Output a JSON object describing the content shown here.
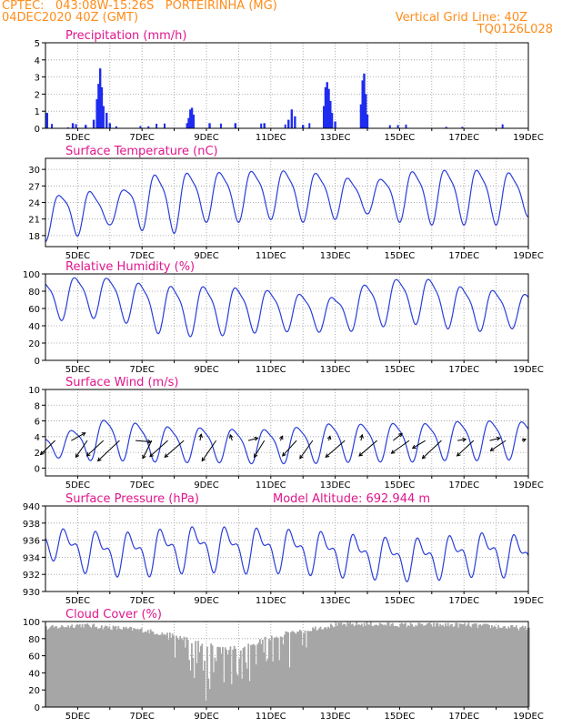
{
  "header": {
    "line1_left": "CPTEC:   043:08W-15:26S   PORTEIRINHA (MG)",
    "line2_left": "04DEC2020 40Z (GMT)",
    "line1_right": "Vertical Grid Line: 40Z",
    "line2_right": "TQ0126L028"
  },
  "colors": {
    "header": "#ff8c1a",
    "title": "#e0168c",
    "series": "#2a3ed8",
    "precip_bar": "#1e2bf0",
    "cloud_bar": "#a6a6a6",
    "grid": "#9a9a9a",
    "arrow": "#000000"
  },
  "x_tick_labels": [
    "5DEC",
    "7DEC",
    "9DEC",
    "11DEC",
    "13DEC",
    "15DEC",
    "17DEC",
    "19DEC"
  ],
  "chart_data": [
    {
      "type": "bar",
      "id": "precip",
      "title": "Precipitation (mm/h)",
      "ylim": [
        0,
        5
      ],
      "yticks": [
        0,
        1,
        2,
        3,
        4,
        5
      ],
      "x_range_days": [
        4,
        19
      ],
      "events": [
        {
          "day": 4.05,
          "value": 0.9
        },
        {
          "day": 4.85,
          "value": 0.3
        },
        {
          "day": 5.25,
          "value": 0.2
        },
        {
          "day": 5.5,
          "value": 0.5
        },
        {
          "day": 5.6,
          "value": 1.7
        },
        {
          "day": 5.65,
          "value": 2.6
        },
        {
          "day": 5.7,
          "value": 3.5
        },
        {
          "day": 5.75,
          "value": 2.4
        },
        {
          "day": 5.8,
          "value": 1.3
        },
        {
          "day": 5.9,
          "value": 0.9
        },
        {
          "day": 6.0,
          "value": 0.3
        },
        {
          "day": 8.4,
          "value": 0.3
        },
        {
          "day": 8.45,
          "value": 0.6
        },
        {
          "day": 8.5,
          "value": 1.1
        },
        {
          "day": 8.55,
          "value": 1.2
        },
        {
          "day": 8.6,
          "value": 0.8
        },
        {
          "day": 9.1,
          "value": 0.3
        },
        {
          "day": 9.9,
          "value": 0.3
        },
        {
          "day": 10.8,
          "value": 0.3
        },
        {
          "day": 11.55,
          "value": 0.5
        },
        {
          "day": 11.65,
          "value": 1.1
        },
        {
          "day": 11.75,
          "value": 0.7
        },
        {
          "day": 12.0,
          "value": 0.2
        },
        {
          "day": 12.65,
          "value": 1.3
        },
        {
          "day": 12.7,
          "value": 2.4
        },
        {
          "day": 12.75,
          "value": 2.7
        },
        {
          "day": 12.8,
          "value": 2.3
        },
        {
          "day": 12.85,
          "value": 1.6
        },
        {
          "day": 12.9,
          "value": 0.9
        },
        {
          "day": 13.0,
          "value": 0.4
        },
        {
          "day": 13.8,
          "value": 1.4
        },
        {
          "day": 13.85,
          "value": 2.8
        },
        {
          "day": 13.9,
          "value": 3.2
        },
        {
          "day": 13.95,
          "value": 2.0
        },
        {
          "day": 14.0,
          "value": 0.8
        }
      ]
    },
    {
      "type": "line",
      "id": "temp",
      "title": "Surface Temperature (nC)",
      "ylim": [
        16,
        32
      ],
      "yticks": [
        18,
        21,
        24,
        27,
        30
      ],
      "series": [
        {
          "mean": [
            21,
            23,
            22.5,
            24.5,
            24.5,
            25.5,
            25.5,
            26,
            25.5,
            25.5,
            25,
            25.5,
            25.5,
            25.5,
            25.5,
            25.5
          ],
          "amplitude": [
            4,
            5,
            2.5,
            5.5,
            6,
            5,
            5,
            5,
            5,
            4.5,
            3,
            5,
            5.5,
            5.5,
            5.5,
            4
          ],
          "phase_days": 0.22
        }
      ]
    },
    {
      "type": "line",
      "id": "rh",
      "title": "Relative Humidity (%)",
      "ylim": [
        0,
        100
      ],
      "yticks": [
        0,
        20,
        40,
        60,
        80,
        100
      ],
      "series": [
        {
          "mean": [
            72,
            74,
            76,
            65,
            60,
            60,
            60,
            60,
            57,
            55,
            65,
            72,
            70,
            62,
            60,
            60
          ],
          "amplitude": [
            25,
            28,
            24,
            30,
            32,
            32,
            30,
            26,
            24,
            22,
            30,
            28,
            30,
            28,
            26,
            20
          ],
          "phase_days": 0.72
        }
      ]
    },
    {
      "type": "line",
      "id": "wind",
      "title": "Surface Wind (m/s)",
      "ylim": [
        -1,
        10
      ],
      "yticks": [
        0,
        2,
        4,
        6,
        8,
        10
      ],
      "series": [
        {
          "mean": [
            3,
            3.2,
            4,
            3.5,
            3.2,
            3.2,
            3,
            3,
            3.2,
            3.5,
            3.5,
            3.5,
            3.6,
            3.8,
            3.8,
            3.8
          ],
          "amplitude": [
            1.5,
            2.2,
            3,
            2.6,
            2.5,
            2.4,
            2.4,
            2.4,
            2.6,
            2.8,
            2.6,
            2.8,
            2.6,
            2.8,
            2.8,
            2.6
          ],
          "phase_days": 0.62
        }
      ],
      "vectors": [
        {
          "day": 4.3,
          "u": -2.3,
          "v": -2.2
        },
        {
          "day": 4.8,
          "u": 2.2,
          "v": 1.2
        },
        {
          "day": 5.3,
          "u": -1.8,
          "v": -2.6
        },
        {
          "day": 5.8,
          "u": -2.6,
          "v": -2.4
        },
        {
          "day": 6.3,
          "u": -3.4,
          "v": -3.2
        },
        {
          "day": 6.8,
          "u": 2.4,
          "v": -0.2
        },
        {
          "day": 7.3,
          "u": -1.4,
          "v": -2.8
        },
        {
          "day": 7.8,
          "u": -2.8,
          "v": -2.5
        },
        {
          "day": 8.3,
          "u": -3.0,
          "v": -2.6
        },
        {
          "day": 8.8,
          "u": 0.2,
          "v": 1.0
        },
        {
          "day": 9.3,
          "u": -2.2,
          "v": -3.2
        },
        {
          "day": 9.8,
          "u": -0.3,
          "v": 0.9
        },
        {
          "day": 10.3,
          "u": 1.5,
          "v": 0.4
        },
        {
          "day": 10.8,
          "u": -1.6,
          "v": -2.6
        },
        {
          "day": 11.3,
          "u": 0.3,
          "v": 0.7
        },
        {
          "day": 11.8,
          "u": -2.2,
          "v": -2.4
        },
        {
          "day": 12.3,
          "u": -2.0,
          "v": -2.8
        },
        {
          "day": 12.8,
          "u": 0.2,
          "v": 0.7
        },
        {
          "day": 13.3,
          "u": -3.0,
          "v": -2.6
        },
        {
          "day": 13.8,
          "u": 0.2,
          "v": 0.9
        },
        {
          "day": 14.3,
          "u": -2.8,
          "v": -2.4
        },
        {
          "day": 14.8,
          "u": 1.4,
          "v": 1.1
        },
        {
          "day": 15.3,
          "u": -2.8,
          "v": -2.0
        },
        {
          "day": 15.8,
          "u": -2.0,
          "v": -1.2
        },
        {
          "day": 16.3,
          "u": -3.0,
          "v": -2.8
        },
        {
          "day": 16.8,
          "u": 1.3,
          "v": 0.2
        },
        {
          "day": 17.3,
          "u": -2.6,
          "v": -2.4
        },
        {
          "day": 17.8,
          "u": 1.6,
          "v": 0.4
        },
        {
          "day": 18.3,
          "u": -2.4,
          "v": -1.6
        },
        {
          "day": 18.8,
          "u": 0.6,
          "v": 0.2
        }
      ]
    },
    {
      "type": "line",
      "id": "pressure",
      "title": "Surface Pressure (hPa)",
      "subtitle": "Model Altitude: 692.944 m",
      "ylim": [
        930,
        940
      ],
      "yticks": [
        930,
        932,
        934,
        936,
        938,
        940
      ],
      "series": [
        {
          "mean": [
            935.8,
            935,
            934.5,
            934.6,
            935,
            935.2,
            935,
            935,
            934.8,
            934.5,
            934.2,
            933.9,
            934,
            934.4,
            934.6,
            934
          ],
          "amplitude": [
            1.2,
            2.2,
            2.2,
            2.4,
            2.4,
            2.4,
            2.4,
            2.3,
            2.3,
            2.3,
            2.2,
            2.2,
            2.2,
            2.2,
            2.3,
            2.3
          ],
          "phase_days": 0.42
        }
      ]
    },
    {
      "type": "bar",
      "id": "cloud",
      "title": "Cloud Cover (%)",
      "ylim": [
        0,
        100
      ],
      "yticks": [
        0,
        20,
        40,
        60,
        80,
        100
      ],
      "profile": [
        {
          "day": 4.0,
          "value": 92
        },
        {
          "day": 5.0,
          "value": 96
        },
        {
          "day": 6.0,
          "value": 93
        },
        {
          "day": 7.0,
          "value": 90
        },
        {
          "day": 8.0,
          "value": 83
        },
        {
          "day": 9.0,
          "value": 72
        },
        {
          "day": 10.0,
          "value": 68
        },
        {
          "day": 11.0,
          "value": 82
        },
        {
          "day": 12.0,
          "value": 90
        },
        {
          "day": 13.0,
          "value": 96
        },
        {
          "day": 14.0,
          "value": 97
        },
        {
          "day": 15.0,
          "value": 96
        },
        {
          "day": 16.0,
          "value": 96
        },
        {
          "day": 17.0,
          "value": 96
        },
        {
          "day": 18.0,
          "value": 94
        },
        {
          "day": 19.0,
          "value": 92
        }
      ]
    }
  ]
}
